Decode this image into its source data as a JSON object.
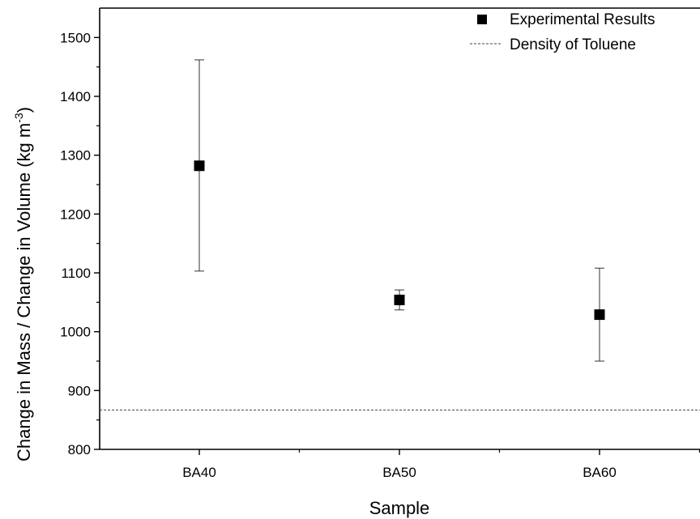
{
  "chart_data": {
    "type": "scatter",
    "categories": [
      "BA40",
      "BA50",
      "BA60"
    ],
    "series": [
      {
        "name": "Experimental Results",
        "values": [
          1282,
          1054,
          1029
        ],
        "error_low": [
          1103,
          1037,
          950
        ],
        "error_high": [
          1462,
          1071,
          1108
        ],
        "marker": "square",
        "color": "#000000"
      }
    ],
    "reference_lines": [
      {
        "name": "Density of Toluene",
        "value": 867,
        "style": "dashed",
        "color": "#444444"
      }
    ],
    "xlabel": "Sample",
    "ylabel_main": "Change in Mass / Change in Volume (kg m",
    "ylabel_sup": "-3",
    "ylabel_close": ")",
    "ylim": [
      800,
      1550
    ],
    "yticks": [
      "800",
      "900",
      "1000",
      "1100",
      "1200",
      "1300",
      "1400",
      "1500"
    ],
    "legend_position": "top-right",
    "grid": false
  }
}
